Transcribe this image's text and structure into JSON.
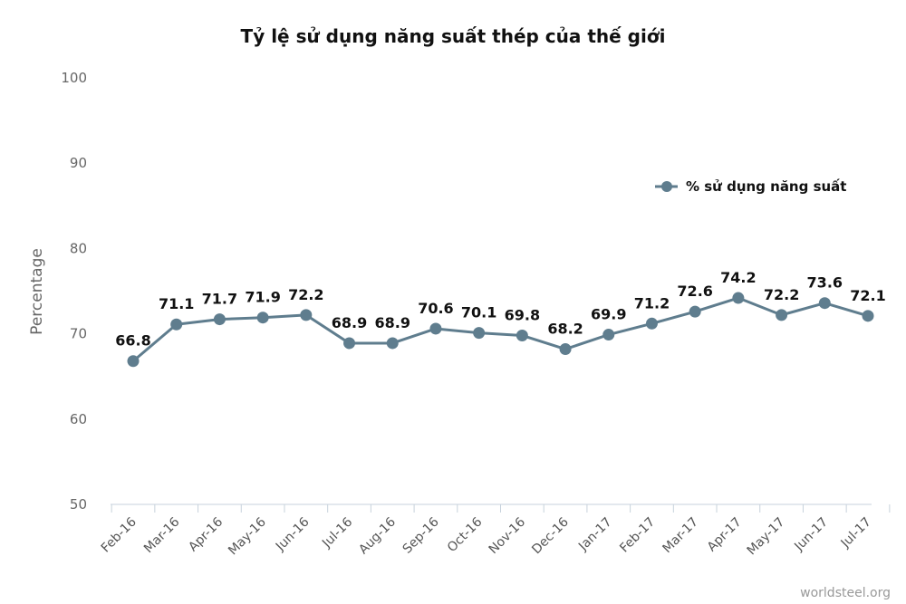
{
  "chart_data": {
    "type": "line",
    "title": "Tỷ lệ sử dụng năng suất thép của thế giới",
    "xlabel": "",
    "ylabel": "Percentage",
    "ylim": [
      50,
      100
    ],
    "yticks": [
      50,
      60,
      70,
      80,
      90,
      100
    ],
    "categories": [
      "Feb-16",
      "Mar-16",
      "Apr-16",
      "May-16",
      "Jun-16",
      "Jul-16",
      "Aug-16",
      "Sep-16",
      "Oct-16",
      "Nov-16",
      "Dec-16",
      "Jan-17",
      "Feb-17",
      "Mar-17",
      "Apr-17",
      "May-17",
      "Jun-17",
      "Jul-17"
    ],
    "series": [
      {
        "name": "% sử dụng năng suất",
        "color": "#5f7d8e",
        "values": [
          66.8,
          71.1,
          71.7,
          71.9,
          72.2,
          68.9,
          68.9,
          70.6,
          70.1,
          69.8,
          68.2,
          69.9,
          71.2,
          72.6,
          74.2,
          72.2,
          73.6,
          72.1
        ]
      }
    ],
    "grid": false,
    "legend_position": "top-right",
    "credit": "worldsteel.org"
  }
}
